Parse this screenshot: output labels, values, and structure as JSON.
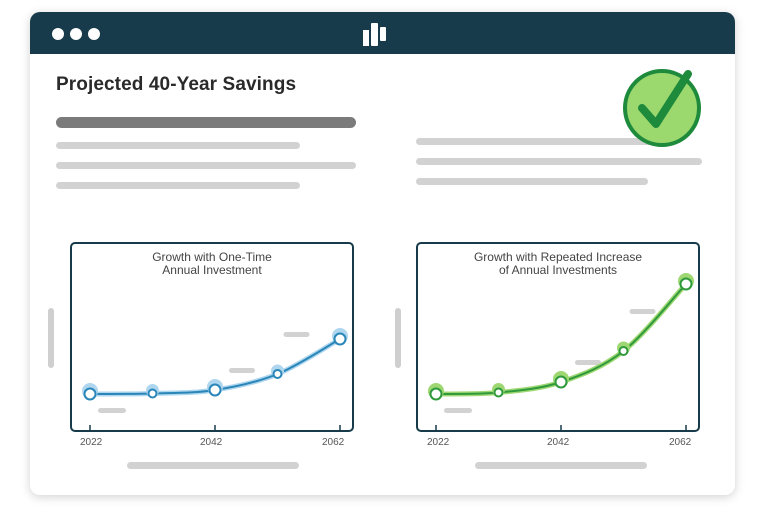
{
  "window": {
    "titlebar_color": "#173b4a",
    "traffic_dots": [
      "dot",
      "dot",
      "dot"
    ],
    "logo_icon": "bar-chart-logo-icon",
    "check_icon": "check-circle-icon"
  },
  "page": {
    "title": "Projected 40-Year Savings"
  },
  "charts": {
    "one_time": {
      "title_line1": "Growth with One-Time",
      "title_line2": "Annual Investment",
      "x_ticks": [
        "2022",
        "2042",
        "2062"
      ]
    },
    "repeated": {
      "title_line1": "Growth with Repeated Increase",
      "title_line2": "of Annual Investments",
      "x_ticks": [
        "2022",
        "2042",
        "2062"
      ]
    }
  },
  "chart_data": [
    {
      "type": "line",
      "title": "Growth with One-Time Annual Investment",
      "color": "#2a86b8",
      "highlight_color": "#aed6ee",
      "x": [
        2022,
        2032,
        2042,
        2052,
        2062
      ],
      "values": [
        1.0,
        1.05,
        1.4,
        3.0,
        6.5
      ],
      "x_ticks": [
        "2022",
        "2042",
        "2062"
      ],
      "xlim": [
        2022,
        2062
      ],
      "ylim": [
        0,
        12
      ],
      "grid": false
    },
    {
      "type": "line",
      "title": "Growth with Repeated Increase of Annual Investments",
      "color": "#2f9a3c",
      "highlight_color": "#9fd873",
      "x": [
        2022,
        2032,
        2042,
        2052,
        2062
      ],
      "values": [
        1.0,
        1.15,
        2.2,
        5.3,
        12.0
      ],
      "x_ticks": [
        "2022",
        "2042",
        "2062"
      ],
      "xlim": [
        2022,
        2062
      ],
      "ylim": [
        0,
        12
      ],
      "grid": false
    }
  ]
}
